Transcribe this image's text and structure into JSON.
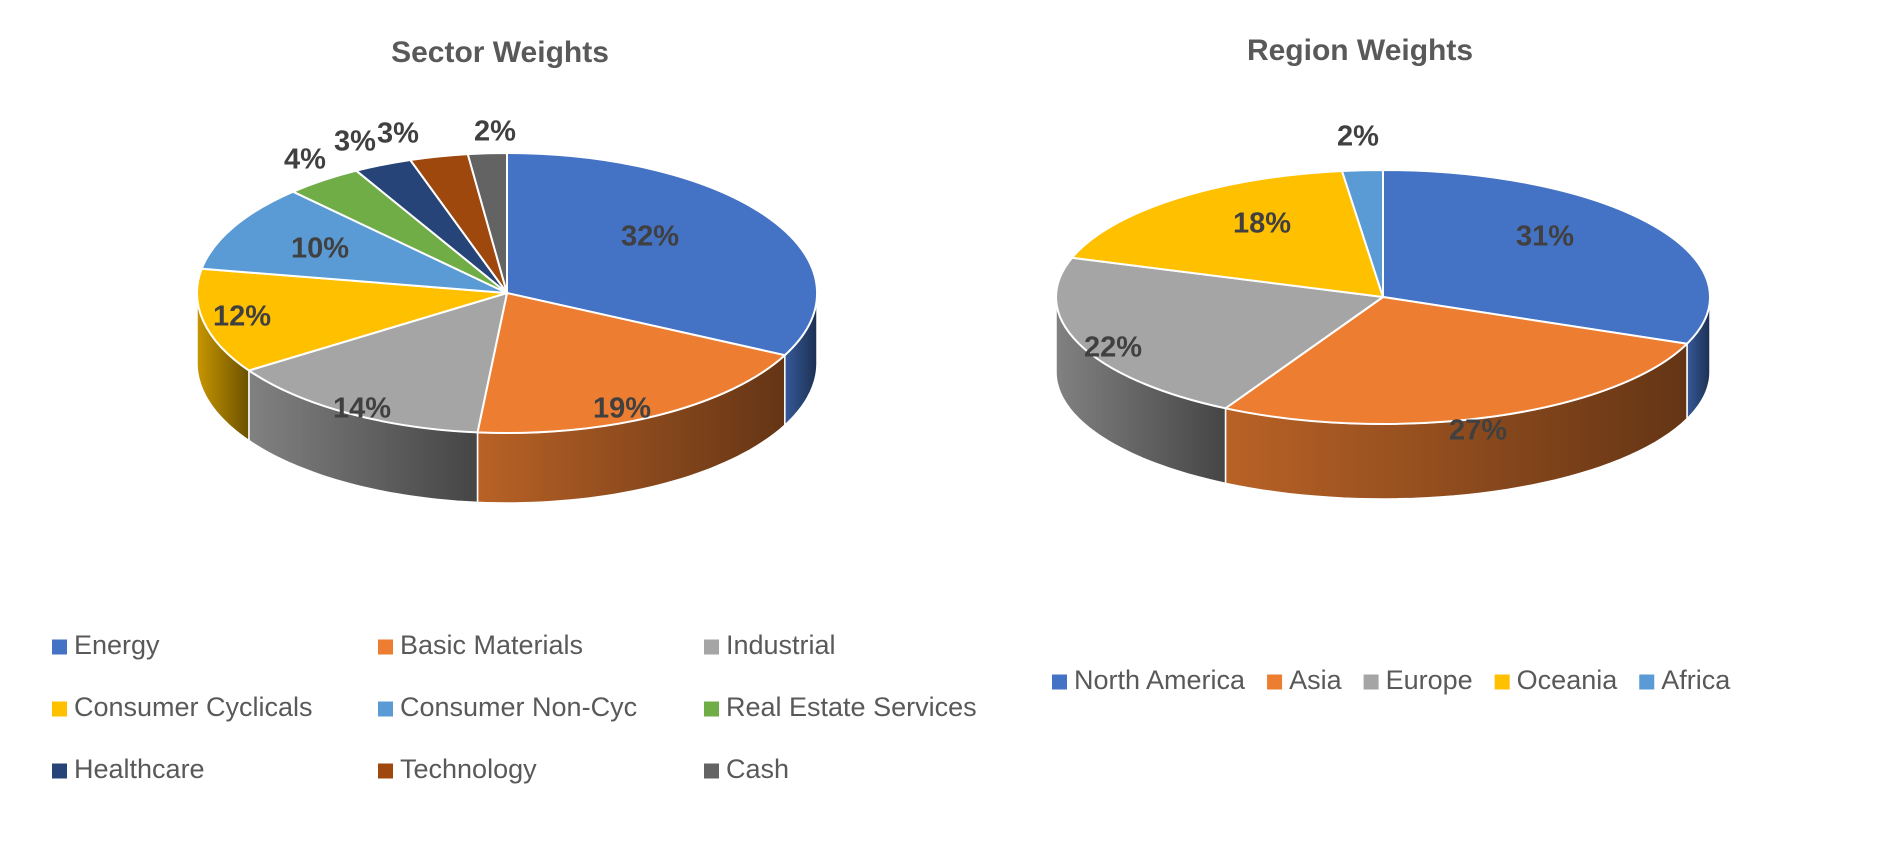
{
  "chart_data": [
    {
      "type": "pie",
      "title": "Sector Weights",
      "categories": [
        "Energy",
        "Basic Materials",
        "Industrial",
        "Consumer Cyclicals",
        "Consumer Non-Cyc",
        "Real Estate Services",
        "Healthcare",
        "Technology",
        "Cash"
      ],
      "values": [
        32,
        19,
        14,
        12,
        10,
        4,
        3,
        3,
        2
      ],
      "labels": [
        "32%",
        "19%",
        "14%",
        "12%",
        "10%",
        "4%",
        "3%",
        "3%",
        "2%"
      ],
      "colors": [
        "#4472C4",
        "#ED7D31",
        "#A5A5A5",
        "#FFC000",
        "#5B9BD5",
        "#70AD47",
        "#264478",
        "#9E480E",
        "#636363"
      ],
      "style": "3d",
      "legend": "bottom"
    },
    {
      "type": "pie",
      "title": "Region Weights",
      "categories": [
        "North America",
        "Asia",
        "Europe",
        "Oceania",
        "Africa"
      ],
      "values": [
        31,
        27,
        22,
        18,
        2
      ],
      "labels": [
        "31%",
        "27%",
        "22%",
        "18%",
        "2%"
      ],
      "colors": [
        "#4472C4",
        "#ED7D31",
        "#A5A5A5",
        "#FFC000",
        "#5B9BD5"
      ],
      "style": "3d",
      "legend": "bottom"
    }
  ]
}
